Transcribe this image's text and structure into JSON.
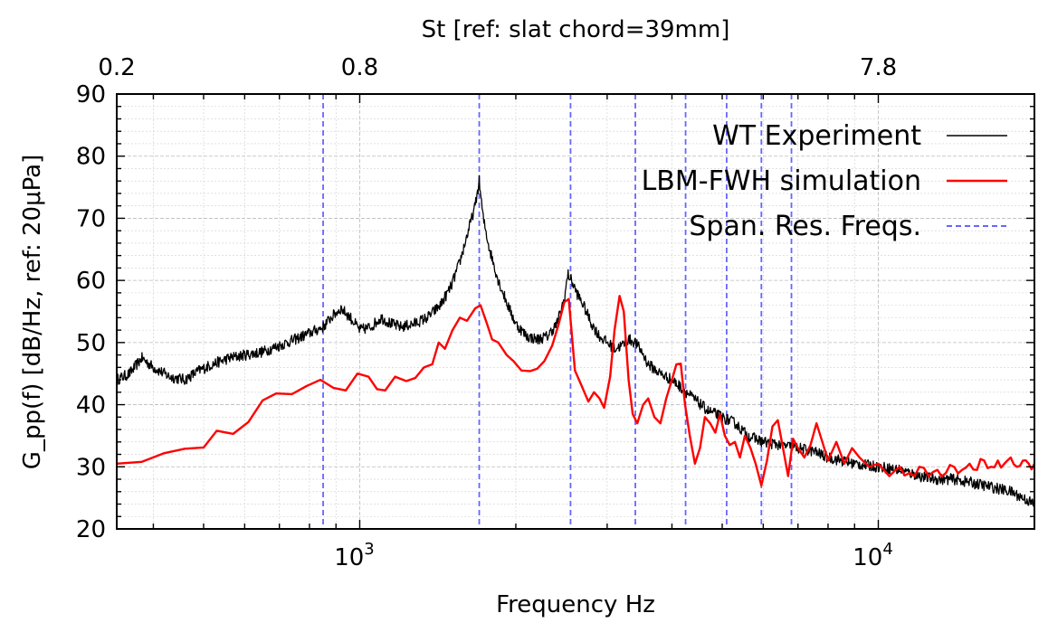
{
  "chart_data": {
    "type": "line",
    "xlabel": "Frequency Hz",
    "ylabel": "G_pp(f) [dB/Hz, ref: 20μPa]",
    "top_xlabel": "St [ref: slat chord=39mm]",
    "xscale": "log",
    "xlim": [
      340,
      20000
    ],
    "ylim": [
      20,
      90
    ],
    "yticks": [
      20,
      30,
      40,
      50,
      60,
      70,
      80,
      90
    ],
    "xtick_labels": [
      {
        "value": 1000,
        "base": "10",
        "exp": "3"
      },
      {
        "value": 10000,
        "base": "10",
        "exp": "4"
      }
    ],
    "top_ticks": [
      {
        "label": "0.2",
        "freq": 340
      },
      {
        "label": "0.8",
        "freq": 1000
      },
      {
        "label": "7.8",
        "freq": 10000
      }
    ],
    "grid": true,
    "legend_position": "top-right",
    "spanwise_resonance_freqs": [
      850,
      1700,
      2550,
      3400,
      4250,
      5100,
      5950,
      6800
    ],
    "series": [
      {
        "name": "WT Experiment",
        "color": "#000000",
        "points": [
          [
            340,
            44
          ],
          [
            360,
            45
          ],
          [
            380,
            47.5
          ],
          [
            400,
            46
          ],
          [
            430,
            44.5
          ],
          [
            460,
            44
          ],
          [
            490,
            45.5
          ],
          [
            520,
            46.5
          ],
          [
            560,
            47.5
          ],
          [
            600,
            48
          ],
          [
            650,
            48.5
          ],
          [
            700,
            49.5
          ],
          [
            750,
            50.5
          ],
          [
            800,
            51.5
          ],
          [
            850,
            52.5
          ],
          [
            880,
            54
          ],
          [
            920,
            55.5
          ],
          [
            960,
            54
          ],
          [
            1000,
            52
          ],
          [
            1050,
            52.5
          ],
          [
            1100,
            54
          ],
          [
            1150,
            53
          ],
          [
            1200,
            52.5
          ],
          [
            1270,
            53
          ],
          [
            1350,
            54
          ],
          [
            1430,
            56
          ],
          [
            1500,
            59
          ],
          [
            1560,
            63
          ],
          [
            1620,
            68
          ],
          [
            1670,
            72
          ],
          [
            1700,
            76
          ],
          [
            1730,
            70
          ],
          [
            1780,
            65
          ],
          [
            1850,
            60
          ],
          [
            1930,
            56
          ],
          [
            2000,
            53
          ],
          [
            2100,
            51
          ],
          [
            2200,
            50.5
          ],
          [
            2300,
            51
          ],
          [
            2400,
            53
          ],
          [
            2480,
            57
          ],
          [
            2520,
            61
          ],
          [
            2560,
            60
          ],
          [
            2620,
            58
          ],
          [
            2700,
            56
          ],
          [
            2800,
            53
          ],
          [
            2900,
            51
          ],
          [
            3000,
            50
          ],
          [
            3100,
            49
          ],
          [
            3200,
            49.5
          ],
          [
            3300,
            50.5
          ],
          [
            3400,
            50
          ],
          [
            3500,
            48.5
          ],
          [
            3600,
            46.5
          ],
          [
            3800,
            45
          ],
          [
            4000,
            44
          ],
          [
            4200,
            42.5
          ],
          [
            4400,
            41
          ],
          [
            4700,
            39
          ],
          [
            5000,
            38
          ],
          [
            5300,
            37
          ],
          [
            5600,
            35
          ],
          [
            6000,
            34
          ],
          [
            6500,
            33.5
          ],
          [
            7000,
            33
          ],
          [
            7500,
            32.5
          ],
          [
            8000,
            31.5
          ],
          [
            9000,
            30.5
          ],
          [
            10000,
            30
          ],
          [
            11000,
            29.5
          ],
          [
            12000,
            28.5
          ],
          [
            13000,
            28
          ],
          [
            14000,
            28
          ],
          [
            15000,
            27.5
          ],
          [
            16000,
            27
          ],
          [
            17000,
            26.5
          ],
          [
            18000,
            26
          ],
          [
            19000,
            25
          ],
          [
            20000,
            24
          ]
        ],
        "jitter": 0.9
      },
      {
        "name": "LBM-FWH simulation",
        "color": "#ff0000",
        "points": [
          [
            340,
            30.5
          ],
          [
            380,
            30.8
          ],
          [
            420,
            32.2
          ],
          [
            460,
            32.9
          ],
          [
            500,
            33.1
          ],
          [
            530,
            35.8
          ],
          [
            570,
            35.3
          ],
          [
            610,
            37.2
          ],
          [
            650,
            40.7
          ],
          [
            690,
            41.8
          ],
          [
            740,
            41.7
          ],
          [
            790,
            43
          ],
          [
            840,
            44
          ],
          [
            890,
            42.7
          ],
          [
            940,
            42.3
          ],
          [
            990,
            45
          ],
          [
            1040,
            44.5
          ],
          [
            1080,
            42.5
          ],
          [
            1120,
            42.3
          ],
          [
            1170,
            44.5
          ],
          [
            1230,
            43.8
          ],
          [
            1280,
            44.3
          ],
          [
            1330,
            46
          ],
          [
            1380,
            46.5
          ],
          [
            1420,
            50
          ],
          [
            1460,
            49
          ],
          [
            1510,
            52
          ],
          [
            1560,
            54
          ],
          [
            1610,
            53.5
          ],
          [
            1670,
            55.5
          ],
          [
            1710,
            56
          ],
          [
            1760,
            53
          ],
          [
            1800,
            50.5
          ],
          [
            1850,
            50
          ],
          [
            1920,
            48
          ],
          [
            1980,
            47
          ],
          [
            2050,
            45.5
          ],
          [
            2130,
            45.4
          ],
          [
            2200,
            45.8
          ],
          [
            2270,
            47
          ],
          [
            2350,
            49.5
          ],
          [
            2420,
            53
          ],
          [
            2480,
            56.5
          ],
          [
            2530,
            57
          ],
          [
            2600,
            45.5
          ],
          [
            2680,
            43
          ],
          [
            2760,
            40.5
          ],
          [
            2830,
            42
          ],
          [
            2900,
            41
          ],
          [
            2960,
            39.5
          ],
          [
            3040,
            44.5
          ],
          [
            3100,
            52
          ],
          [
            3170,
            57.5
          ],
          [
            3230,
            55
          ],
          [
            3300,
            44
          ],
          [
            3360,
            38.5
          ],
          [
            3430,
            37
          ],
          [
            3520,
            40
          ],
          [
            3600,
            41
          ],
          [
            3700,
            38
          ],
          [
            3800,
            37
          ],
          [
            3900,
            41
          ],
          [
            4000,
            44
          ],
          [
            4080,
            46.5
          ],
          [
            4160,
            46.6
          ],
          [
            4240,
            40
          ],
          [
            4330,
            35
          ],
          [
            4430,
            30.5
          ],
          [
            4530,
            33
          ],
          [
            4630,
            38
          ],
          [
            4740,
            37
          ],
          [
            4850,
            35.5
          ],
          [
            4950,
            38.5
          ],
          [
            5060,
            35
          ],
          [
            5170,
            33.5
          ],
          [
            5290,
            34
          ],
          [
            5410,
            31.5
          ],
          [
            5530,
            35
          ],
          [
            5670,
            33
          ],
          [
            5800,
            30.5
          ],
          [
            5950,
            27
          ],
          [
            6100,
            31
          ],
          [
            6250,
            36.5
          ],
          [
            6400,
            37.5
          ],
          [
            6550,
            33
          ],
          [
            6700,
            28.5
          ],
          [
            6850,
            34.5
          ],
          [
            7000,
            33
          ],
          [
            7200,
            31.5
          ],
          [
            7400,
            33.5
          ],
          [
            7600,
            37
          ],
          [
            7800,
            34
          ],
          [
            8000,
            31
          ],
          [
            8300,
            34
          ],
          [
            8600,
            30.5
          ],
          [
            8900,
            33
          ],
          [
            9200,
            31.5
          ],
          [
            9600,
            30
          ],
          [
            10000,
            30.5
          ],
          [
            10500,
            28.5
          ],
          [
            11000,
            30
          ],
          [
            11500,
            29
          ],
          [
            12000,
            30
          ],
          [
            12500,
            28.5
          ],
          [
            13000,
            29.5
          ],
          [
            13500,
            29
          ],
          [
            14000,
            30
          ],
          [
            14500,
            29.5
          ],
          [
            15000,
            30.5
          ],
          [
            15500,
            29.5
          ],
          [
            16000,
            31
          ],
          [
            16500,
            30
          ],
          [
            17000,
            31
          ],
          [
            17500,
            30.5
          ],
          [
            18000,
            31.5
          ],
          [
            18500,
            30
          ],
          [
            19000,
            31
          ],
          [
            19500,
            30.5
          ],
          [
            20000,
            30.5
          ]
        ],
        "jitter": 1.1
      },
      {
        "name": "Span. Res. Freqs.",
        "color": "#6666ff",
        "style": "dashed"
      }
    ]
  }
}
